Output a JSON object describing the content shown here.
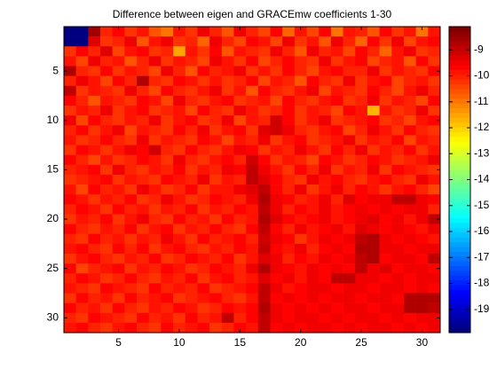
{
  "chart_data": {
    "type": "heatmap",
    "title": "Difference between eigen and GRACEmw coefficients 1-30",
    "colormap": "jet",
    "xlim": [
      0.5,
      31.5
    ],
    "ylim": [
      31.5,
      0.5
    ],
    "xticks": [
      5,
      10,
      15,
      20,
      25,
      30
    ],
    "yticks": [
      5,
      10,
      15,
      20,
      25,
      30
    ],
    "clim": [
      -19.9,
      -8.1
    ],
    "cticks": [
      -19,
      -18,
      -17,
      -16,
      -15,
      -14,
      -13,
      -12,
      -11,
      -10,
      -9
    ],
    "z": [
      [
        -19.9,
        -19.9,
        -8.5,
        -9.9,
        -9.6,
        -10.2,
        -9.8,
        -10.5,
        -11,
        -9.7,
        -10.1,
        -9.5,
        -9.9,
        -10.6,
        -9.4,
        -9.9,
        -10.3,
        -9.6,
        -10.8,
        -9.8,
        -10.4,
        -9.6,
        -10.9,
        -9.7,
        -9.9,
        -10.5,
        -9.6,
        -10.2,
        -9.8,
        -11,
        -9.7
      ],
      [
        -19.9,
        -19.9,
        -9.2,
        -10.1,
        -9.9,
        -9.5,
        -10.6,
        -9.8,
        -9.4,
        -10.2,
        -9.9,
        -10.7,
        -9.5,
        -9.9,
        -10.3,
        -9.6,
        -9.8,
        -10.4,
        -9.5,
        -10.1,
        -9.7,
        -10.6,
        -9.5,
        -9.9,
        -10.8,
        -9.6,
        -10.1,
        -9.4,
        -10.3,
        -9.8,
        -9.6
      ],
      [
        -10.1,
        -9.6,
        -9.9,
        -9.3,
        -10.4,
        -9.8,
        -9.6,
        -10.2,
        -9.9,
        -11.4,
        -9.7,
        -10.1,
        -9.6,
        -10.5,
        -9.8,
        -9.9,
        -10.2,
        -9.5,
        -9.9,
        -10.6,
        -9.4,
        -10,
        -9.7,
        -10.3,
        -9.6,
        -9.9,
        -10.7,
        -9.8,
        -9.5,
        -10.2,
        -9.9
      ],
      [
        -9.7,
        -10.3,
        -9.5,
        -10,
        -9.8,
        -10.5,
        -9.9,
        -9.4,
        -10.1,
        -9.7,
        -9.9,
        -10.3,
        -9.5,
        -9.8,
        -10.1,
        -9.6,
        -10.4,
        -9.9,
        -9.6,
        -9.9,
        -10.2,
        -9.5,
        -10.1,
        -9.8,
        -9.6,
        -10.3,
        -9.9,
        -9.7,
        -10.5,
        -9.6,
        -10.1
      ],
      [
        -8.7,
        -9.9,
        -10.2,
        -9.6,
        -10.1,
        -9.7,
        -9.9,
        -10.3,
        -9.5,
        -9.9,
        -10.6,
        -9.6,
        -10,
        -9.7,
        -9.5,
        -10.2,
        -9.8,
        -10.1,
        -9.6,
        -9.9,
        -10.4,
        -9.7,
        -9.6,
        -10,
        -9.9,
        -9.5,
        -10.2,
        -9.7,
        -9.9,
        -10.1,
        -9.6
      ],
      [
        -9.9,
        -9.5,
        -9.8,
        -10.4,
        -9.6,
        -9.9,
        -8.6,
        -9.9,
        -10.1,
        -9.6,
        -9.8,
        -10.2,
        -9.7,
        -10.1,
        -9.9,
        -9.6,
        -10.3,
        -9.8,
        -9.9,
        -10.5,
        -9.6,
        -9.9,
        -10.2,
        -9.5,
        -10.1,
        -9.8,
        -9.6,
        -10.3,
        -9.9,
        -9.7,
        -10.2
      ],
      [
        -8.8,
        -10.2,
        -9.7,
        -9.9,
        -10.1,
        -9.5,
        -9.9,
        -10.4,
        -9.6,
        -9.9,
        -10.1,
        -9.7,
        -9.5,
        -10.2,
        -9.8,
        -10.6,
        -9.6,
        -9.9,
        -10.1,
        -9.7,
        -9.5,
        -10.3,
        -9.8,
        -9.9,
        -10.1,
        -9.6,
        -9.9,
        -10.4,
        -9.7,
        -9.5,
        -9.9
      ],
      [
        -9.6,
        -9.9,
        -10.5,
        -9.7,
        -9.9,
        -10.1,
        -9.6,
        -9.8,
        -10.3,
        -9.5,
        -9.9,
        -10.2,
        -9.8,
        -9.6,
        -10.1,
        -9.9,
        -9.7,
        -10.4,
        -9.6,
        -9.9,
        -10.1,
        -9.7,
        -9.6,
        -10.2,
        -9.9,
        -9.5,
        -10.1,
        -9.8,
        -9.9,
        -10.3,
        -9.6
      ],
      [
        -10.1,
        -9.7,
        -9.9,
        -9.5,
        -10.2,
        -9.8,
        -9.6,
        -10.1,
        -9.9,
        -9.7,
        -10.4,
        -9.6,
        -9.9,
        -10.1,
        -9.5,
        -9.8,
        -10.2,
        -9.9,
        -9.6,
        -10.1,
        -9.7,
        -9.9,
        -10.3,
        -9.6,
        -9.8,
        -11.6,
        -9.7,
        -10.1,
        -9.9,
        -9.5,
        -10.2
      ],
      [
        -9.5,
        -10.4,
        -9.6,
        -9.9,
        -10.1,
        -9.7,
        -9.9,
        -9.4,
        -10.2,
        -9.8,
        -9.6,
        -10.1,
        -9.9,
        -9.5,
        -10.3,
        -9.7,
        -9.9,
        -9.1,
        -9.6,
        -10.1,
        -9.8,
        -9.5,
        -10.2,
        -9.9,
        -9.7,
        -9.6,
        -10.1,
        -9.9,
        -10.4,
        -9.7,
        -9.6
      ],
      [
        -9.9,
        -9.6,
        -10.1,
        -9.8,
        -9.5,
        -10.3,
        -9.7,
        -9.9,
        -10.1,
        -9.6,
        -9.9,
        -9.4,
        -10.2,
        -9.8,
        -9.6,
        -10.1,
        -9.3,
        -9.1,
        -9.4,
        -9.9,
        -10.1,
        -9.7,
        -9.6,
        -10.3,
        -9.9,
        -9.5,
        -9.8,
        -10.1,
        -9.6,
        -9.9,
        -10.2
      ],
      [
        -9.7,
        -10.1,
        -9.9,
        -9.6,
        -9.9,
        -10.1,
        -9.5,
        -10.2,
        -9.7,
        -9.9,
        -10.1,
        -9.6,
        -9.8,
        -10.4,
        -9.7,
        -9.9,
        -9.5,
        -10.1,
        -9.8,
        -9.6,
        -10.2,
        -9.9,
        -9.7,
        -9.5,
        -10.1,
        -9.8,
        -9.9,
        -9.6,
        -10.3,
        -9.7,
        -9.9
      ],
      [
        -10.2,
        -9.6,
        -9.7,
        -10.1,
        -9.8,
        -9.5,
        -9.6,
        -9.1,
        -9.9,
        -10.2,
        -9.6,
        -9.9,
        -10.1,
        -9.7,
        -9.5,
        -9.6,
        -10.1,
        -9.8,
        -9.9,
        -9.4,
        -9.7,
        -10.2,
        -9.6,
        -9.9,
        -9.5,
        -10.1,
        -9.7,
        -9.9,
        -9.6,
        -10.1,
        -9.8
      ],
      [
        -9.6,
        -9.9,
        -10.3,
        -9.7,
        -10.1,
        -9.9,
        -9.6,
        -9.8,
        -10.1,
        -9.5,
        -9.9,
        -10.2,
        -9.7,
        -9.6,
        -9.9,
        -9.1,
        -9.6,
        -10.1,
        -9.8,
        -9.9,
        -10.3,
        -9.6,
        -9.7,
        -10.1,
        -9.9,
        -9.6,
        -9.8,
        -10.2,
        -9.9,
        -9.7,
        -9.5
      ],
      [
        -9.9,
        -9.7,
        -9.6,
        -10.1,
        -9.5,
        -9.9,
        -10.2,
        -9.7,
        -9.9,
        -9.6,
        -10.1,
        -9.8,
        -9.9,
        -9.5,
        -9.6,
        -8.9,
        -9.4,
        -9.7,
        -10.1,
        -9.6,
        -9.9,
        -9.4,
        -10.2,
        -9.7,
        -9.9,
        -9.5,
        -10.1,
        -9.6,
        -9.8,
        -9.9,
        -10.1
      ],
      [
        -10.1,
        -9.9,
        -9.8,
        -9.6,
        -10.2,
        -9.7,
        -9.9,
        -10.1,
        -9.6,
        -9.8,
        -9.9,
        -9.5,
        -10.1,
        -9.7,
        -9.9,
        -8.8,
        -9.3,
        -9.6,
        -9.9,
        -10.1,
        -9.5,
        -9.8,
        -9.6,
        -9.9,
        -10.2,
        -9.7,
        -9.6,
        -9.9,
        -10.1,
        -9.5,
        -9.7
      ],
      [
        -9.7,
        -10.4,
        -9.6,
        -9.9,
        -9.8,
        -10.1,
        -9.5,
        -9.7,
        -10.2,
        -9.9,
        -9.6,
        -10.1,
        -9.8,
        -9.7,
        -9.5,
        -9.2,
        -8.8,
        -9.6,
        -9.9,
        -9.5,
        -10.1,
        -9.7,
        -9.4,
        -9.9,
        -9.6,
        -9.8,
        -10.1,
        -9.7,
        -9.6,
        -9.9,
        -10.3
      ],
      [
        -9.6,
        -9.8,
        -10.1,
        -9.7,
        -9.9,
        -9.6,
        -10.1,
        -9.9,
        -9.5,
        -9.7,
        -10.1,
        -9.9,
        -9.6,
        -9.8,
        -9.9,
        -9.5,
        -8.7,
        -9.4,
        -9.6,
        -9.9,
        -9.7,
        -9.4,
        -9.9,
        -9.3,
        -9.6,
        -9.5,
        -9.4,
        -8.9,
        -8.9,
        -9.4,
        -9.6
      ],
      [
        -9.9,
        -9.6,
        -9.7,
        -10.2,
        -9.6,
        -9.9,
        -9.7,
        -10.1,
        -9.8,
        -9.9,
        -9.6,
        -10.2,
        -9.7,
        -9.9,
        -9.6,
        -9.8,
        -8.8,
        -9.5,
        -9.9,
        -9.6,
        -9.8,
        -9.5,
        -9.7,
        -9.6,
        -9.4,
        -9.6,
        -9.5,
        -9.6,
        -9.4,
        -9.5,
        -9.9
      ],
      [
        -10.2,
        -9.7,
        -9.9,
        -9.6,
        -10.1,
        -9.7,
        -9.5,
        -9.9,
        -10.1,
        -9.6,
        -9.9,
        -9.7,
        -10.1,
        -9.6,
        -9.9,
        -9.7,
        -8.7,
        -9.3,
        -9.6,
        -9.8,
        -9.6,
        -9.5,
        -9.8,
        -9.6,
        -9.5,
        -9.3,
        -9.6,
        -9.4,
        -9.7,
        -9.5,
        -8.9
      ],
      [
        -9.6,
        -9.9,
        -10.1,
        -9.7,
        -9.9,
        -9.6,
        -10.2,
        -9.8,
        -9.6,
        -10.1,
        -9.7,
        -9.9,
        -9.6,
        -9.9,
        -10.1,
        -9.6,
        -8.8,
        -9.6,
        -9.9,
        -9.5,
        -9.8,
        -9.6,
        -9.5,
        -9.7,
        -9.3,
        -9.5,
        -9.6,
        -9.4,
        -9.6,
        -9.7,
        -9.5
      ],
      [
        -9.9,
        -10.1,
        -9.6,
        -9.9,
        -9.8,
        -10.1,
        -9.7,
        -9.9,
        -9.5,
        -9.8,
        -10.1,
        -9.6,
        -9.9,
        -9.7,
        -9.6,
        -9.9,
        -9.1,
        -9.5,
        -9.6,
        -10.1,
        -9.7,
        -9.5,
        -9.6,
        -9.4,
        -8.8,
        -8.7,
        -9.5,
        -9.6,
        -9.4,
        -9.6,
        -9.7
      ],
      [
        -9.7,
        -9.6,
        -9.9,
        -10.2,
        -9.6,
        -9.9,
        -9.6,
        -10.1,
        -9.8,
        -9.6,
        -9.9,
        -10.1,
        -9.7,
        -9.9,
        -9.6,
        -9.8,
        -8.9,
        -9.6,
        -9.8,
        -9.5,
        -9.9,
        -9.6,
        -9.4,
        -9.6,
        -8.7,
        -8.6,
        -9.4,
        -9.5,
        -9.6,
        -9.5,
        -9.4
      ],
      [
        -10.1,
        -9.8,
        -9.6,
        -9.9,
        -10.1,
        -9.7,
        -9.9,
        -9.6,
        -10.1,
        -9.9,
        -9.6,
        -9.8,
        -9.9,
        -9.6,
        -10.1,
        -9.7,
        -9.3,
        -9.5,
        -9.9,
        -9.6,
        -9.7,
        -9.5,
        -9.6,
        -9.5,
        -8.8,
        -8.7,
        -9.6,
        -9.4,
        -9.5,
        -9.6,
        -8.9
      ],
      [
        -9.6,
        -10.3,
        -9.9,
        -9.7,
        -9.6,
        -10.1,
        -9.8,
        -9.9,
        -9.6,
        -9.7,
        -10.2,
        -9.9,
        -9.6,
        -9.8,
        -9.9,
        -9.5,
        -8.7,
        -9.4,
        -9.6,
        -9.8,
        -9.5,
        -9.6,
        -9.4,
        -9.6,
        -8.8,
        -9.5,
        -9.3,
        -9.6,
        -9.5,
        -9.4,
        -9.6
      ],
      [
        -9.9,
        -9.6,
        -9.8,
        -10.1,
        -9.9,
        -9.6,
        -9.9,
        -10.2,
        -9.7,
        -9.9,
        -9.6,
        -10.1,
        -9.8,
        -9.6,
        -9.9,
        -9.7,
        -9.2,
        -9.6,
        -9.5,
        -9.7,
        -9.4,
        -9.6,
        -8.9,
        -8.8,
        -9.5,
        -9.4,
        -9.6,
        -9.5,
        -9.6,
        -9.5,
        -9.4
      ],
      [
        -9.7,
        -9.9,
        -10.1,
        -9.6,
        -9.8,
        -9.9,
        -10.1,
        -9.6,
        -9.9,
        -9.7,
        -9.9,
        -9.6,
        -10.1,
        -9.9,
        -9.7,
        -9.6,
        -8.9,
        -9.5,
        -9.7,
        -9.6,
        -9.5,
        -9.4,
        -9.6,
        -9.5,
        -9.4,
        -9.6,
        -9.5,
        -9.4,
        -9.6,
        -9.5,
        -9.6
      ],
      [
        -10.1,
        -9.6,
        -9.9,
        -9.7,
        -10.1,
        -9.6,
        -9.9,
        -9.8,
        -9.6,
        -10.1,
        -9.9,
        -9.7,
        -9.6,
        -9.9,
        -10.1,
        -9.7,
        -8.8,
        -9.6,
        -9.4,
        -9.6,
        -9.5,
        -9.6,
        -9.4,
        -9.5,
        -9.6,
        -9.4,
        -9.5,
        -9.6,
        -8.6,
        -8.6,
        -8.7
      ],
      [
        -9.6,
        -9.9,
        -9.7,
        -10.2,
        -9.6,
        -9.9,
        -10.1,
        -9.7,
        -9.9,
        -9.6,
        -9.8,
        -10.1,
        -9.9,
        -9.6,
        -9.7,
        -9.6,
        -8.7,
        -9.5,
        -9.6,
        -9.4,
        -9.6,
        -9.5,
        -9.6,
        -9.4,
        -9.5,
        -9.6,
        -9.4,
        -9.5,
        -8.7,
        -8.6,
        -8.8
      ],
      [
        -9.9,
        -10.1,
        -9.6,
        -9.8,
        -9.9,
        -10.2,
        -9.6,
        -9.9,
        -9.7,
        -10.1,
        -9.6,
        -9.9,
        -9.7,
        -8.8,
        -9.9,
        -9.6,
        -8.8,
        -9.4,
        -9.6,
        -9.5,
        -9.4,
        -9.6,
        -9.5,
        -9.6,
        -9.4,
        -9.5,
        -9.6,
        -9.4,
        -9.6,
        -9.5,
        -9.4
      ],
      [
        -9.7,
        -9.6,
        -9.9,
        -10.1,
        -9.7,
        -9.6,
        -9.9,
        -10.1,
        -9.6,
        -9.9,
        -9.7,
        -9.6,
        -10.1,
        -9.9,
        -9.6,
        -9.8,
        -8.9,
        -9.6,
        -9.5,
        -9.6,
        -9.4,
        -9.5,
        -9.6,
        -9.5,
        -9.6,
        -9.4,
        -9.5,
        -9.6,
        -9.4,
        -9.6,
        -9.5
      ]
    ]
  }
}
